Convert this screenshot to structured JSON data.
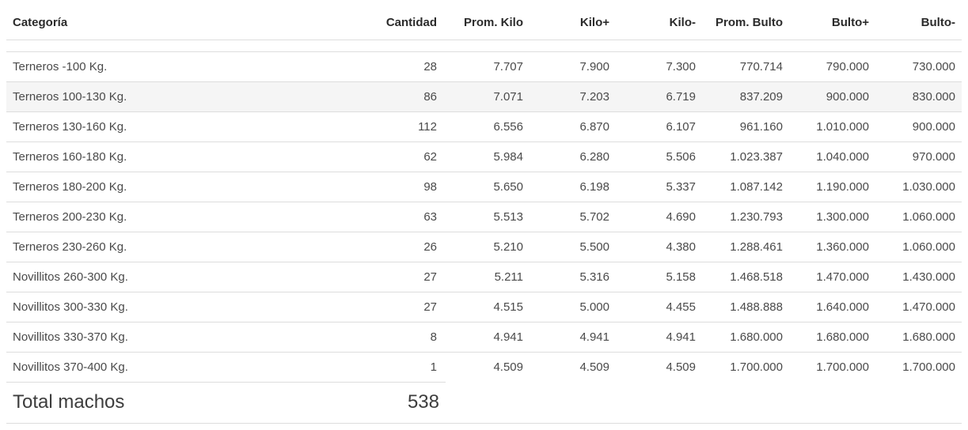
{
  "table": {
    "columns": [
      {
        "label": "Categoría"
      },
      {
        "label": "Cantidad"
      },
      {
        "label": "Prom. Kilo"
      },
      {
        "label": "Kilo+"
      },
      {
        "label": "Kilo-"
      },
      {
        "label": "Prom. Bulto"
      },
      {
        "label": "Bulto+"
      },
      {
        "label": "Bulto-"
      }
    ],
    "rows": [
      [
        "Terneros -100 Kg.",
        "28",
        "7.707",
        "7.900",
        "7.300",
        "770.714",
        "790.000",
        "730.000"
      ],
      [
        "Terneros 100-130 Kg.",
        "86",
        "7.071",
        "7.203",
        "6.719",
        "837.209",
        "900.000",
        "830.000"
      ],
      [
        "Terneros 130-160 Kg.",
        "112",
        "6.556",
        "6.870",
        "6.107",
        "961.160",
        "1.010.000",
        "900.000"
      ],
      [
        "Terneros 160-180 Kg.",
        "62",
        "5.984",
        "6.280",
        "5.506",
        "1.023.387",
        "1.040.000",
        "970.000"
      ],
      [
        "Terneros 180-200 Kg.",
        "98",
        "5.650",
        "6.198",
        "5.337",
        "1.087.142",
        "1.190.000",
        "1.030.000"
      ],
      [
        "Terneros 200-230 Kg.",
        "63",
        "5.513",
        "5.702",
        "4.690",
        "1.230.793",
        "1.300.000",
        "1.060.000"
      ],
      [
        "Terneros 230-260 Kg.",
        "26",
        "5.210",
        "5.500",
        "4.380",
        "1.288.461",
        "1.360.000",
        "1.060.000"
      ],
      [
        "Novillitos 260-300 Kg.",
        "27",
        "5.211",
        "5.316",
        "5.158",
        "1.468.518",
        "1.470.000",
        "1.430.000"
      ],
      [
        "Novillitos 300-330 Kg.",
        "27",
        "4.515",
        "5.000",
        "4.455",
        "1.488.888",
        "1.640.000",
        "1.470.000"
      ],
      [
        "Novillitos 330-370 Kg.",
        "8",
        "4.941",
        "4.941",
        "4.941",
        "1.680.000",
        "1.680.000",
        "1.680.000"
      ],
      [
        "Novillitos 370-400 Kg.",
        "1",
        "4.509",
        "4.509",
        "4.509",
        "1.700.000",
        "1.700.000",
        "1.700.000"
      ]
    ],
    "highlighted_row_index": 1,
    "footer": {
      "label": "Total machos",
      "total": "538"
    }
  },
  "colors": {
    "border": "#dddddd",
    "header_text": "#2b2b2b",
    "body_text": "#4a4a4a",
    "footer_text": "#3d3d3d",
    "row_highlight": "#f5f5f5"
  }
}
